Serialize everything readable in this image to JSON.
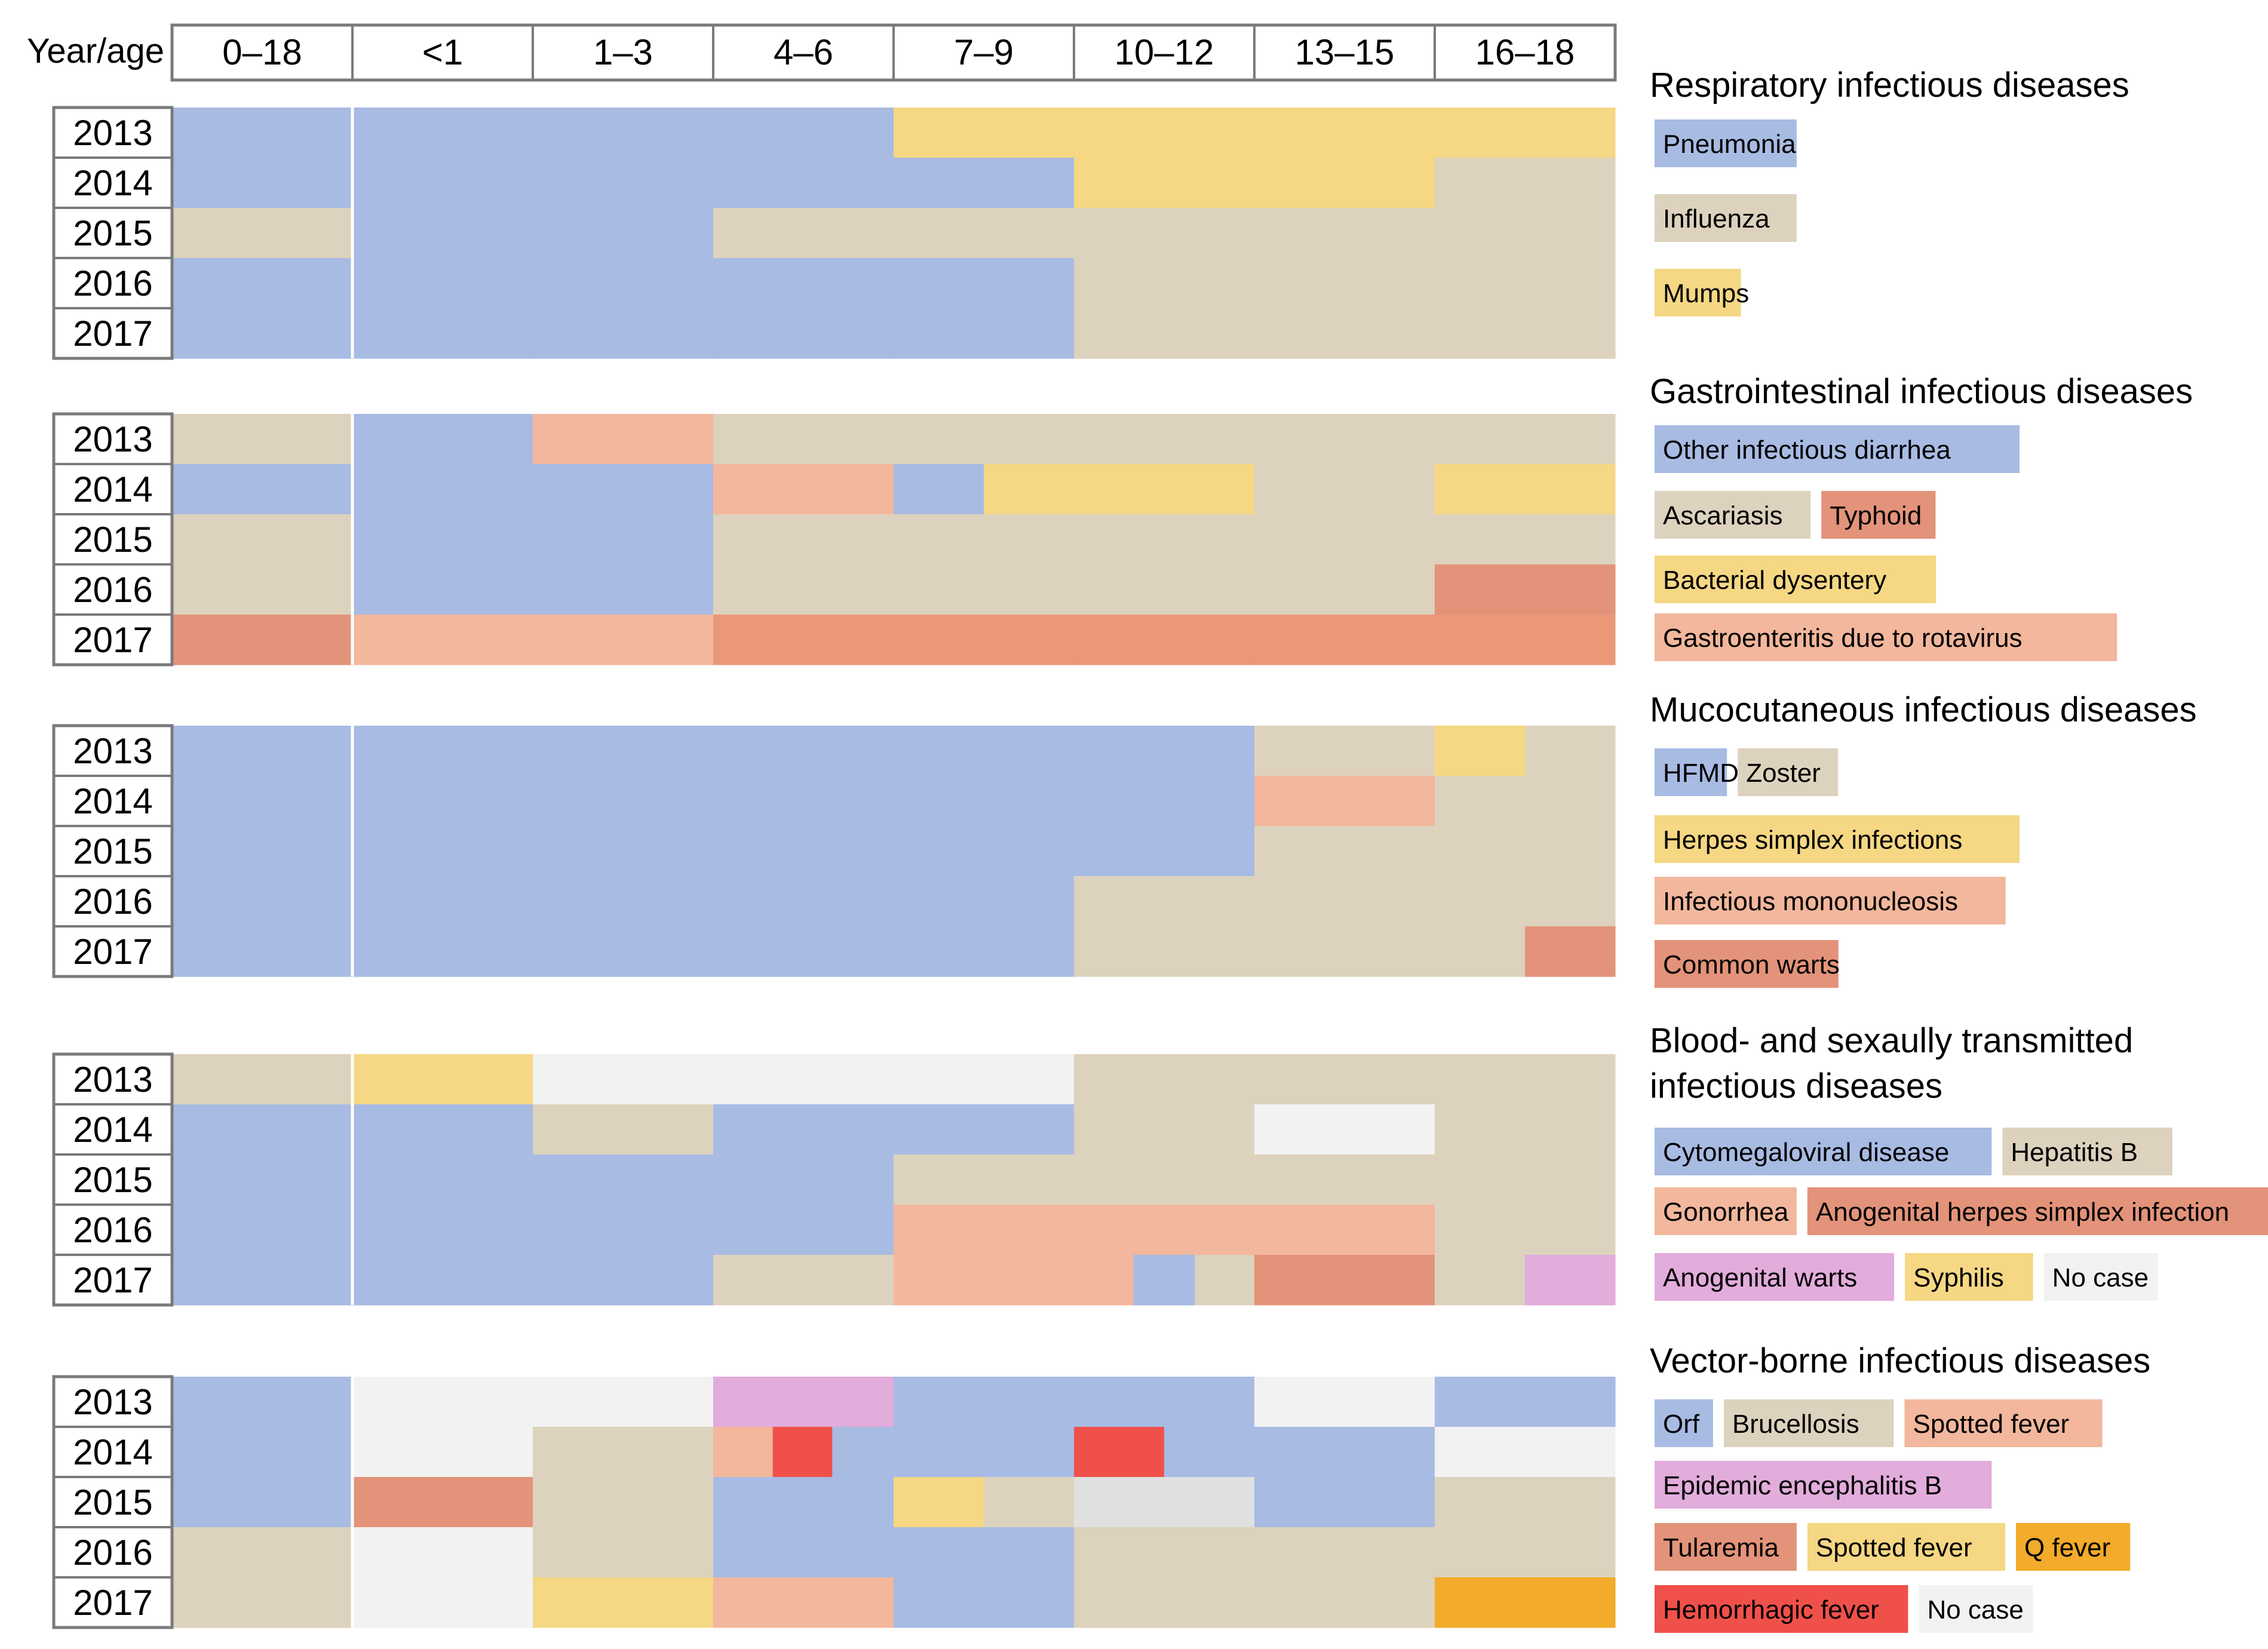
{
  "colors": {
    "blue": "#a8bbe3",
    "beige": "#ddd2bd",
    "yellow": "#f5d784",
    "peach": "#f2b79c",
    "terracotta": "#e3937a",
    "salmon": "#ea9878",
    "pink": "#e2acdb",
    "red": "#f0504a",
    "orange": "#f2ab2a",
    "nocase": "#f2f2f2",
    "gray": "#e0e0e0"
  },
  "chart_data": {
    "type": "heatmap",
    "header_label": "Year/age",
    "age_groups": [
      "0–18",
      "<1",
      "1–3",
      "4–6",
      "7–9",
      "10–12",
      "13–15",
      "16–18"
    ],
    "years": [
      "2013",
      "2014",
      "2015",
      "2016",
      "2017"
    ],
    "panels": [
      {
        "title": "Respiratory infectious diseases",
        "legend": [
          [
            "Pneumonia"
          ],
          [
            "Influenza"
          ],
          [
            "Mumps"
          ]
        ],
        "legend_colors": [
          [
            "blue"
          ],
          [
            "beige"
          ],
          [
            "yellow"
          ]
        ],
        "rows": [
          [
            [
              "blue",
              1
            ],
            [
              "blue",
              1
            ],
            [
              "blue",
              1
            ],
            [
              "blue",
              1
            ],
            [
              "yellow",
              1
            ],
            [
              "yellow",
              1
            ],
            [
              "yellow",
              1
            ],
            [
              "yellow",
              1
            ]
          ],
          [
            [
              "blue",
              1
            ],
            [
              "blue",
              1
            ],
            [
              "blue",
              1
            ],
            [
              "blue",
              1
            ],
            [
              "blue",
              1
            ],
            [
              "yellow",
              1
            ],
            [
              "yellow",
              1
            ],
            [
              "beige",
              1
            ]
          ],
          [
            [
              "beige",
              1
            ],
            [
              "blue",
              1
            ],
            [
              "blue",
              1
            ],
            [
              "beige",
              1
            ],
            [
              "beige",
              1
            ],
            [
              "beige",
              1
            ],
            [
              "beige",
              1
            ],
            [
              "beige",
              1
            ]
          ],
          [
            [
              "blue",
              1
            ],
            [
              "blue",
              1
            ],
            [
              "blue",
              1
            ],
            [
              "blue",
              1
            ],
            [
              "blue",
              1
            ],
            [
              "beige",
              1
            ],
            [
              "beige",
              1
            ],
            [
              "beige",
              1
            ]
          ],
          [
            [
              "blue",
              1
            ],
            [
              "blue",
              1
            ],
            [
              "blue",
              1
            ],
            [
              "blue",
              1
            ],
            [
              "blue",
              1
            ],
            [
              "beige",
              1
            ],
            [
              "beige",
              1
            ],
            [
              "beige",
              1
            ]
          ]
        ]
      },
      {
        "title": "Gastrointestinal infectious diseases",
        "legend": [
          [
            "Other infectious diarrhea"
          ],
          [
            "Ascariasis",
            "Typhoid"
          ],
          [
            "Bacterial dysentery"
          ],
          [
            "Gastroenteritis due to rotavirus"
          ]
        ],
        "legend_colors": [
          [
            "blue"
          ],
          [
            "beige",
            "terracotta"
          ],
          [
            "yellow"
          ],
          [
            "peach"
          ]
        ],
        "rows": [
          [
            [
              "beige",
              1
            ],
            [
              "blue",
              1
            ],
            [
              "peach",
              1
            ],
            [
              "beige",
              1
            ],
            [
              "beige",
              1
            ],
            [
              "beige",
              1
            ],
            [
              "beige",
              1
            ],
            [
              "beige",
              1
            ]
          ],
          [
            [
              "blue",
              1
            ],
            [
              "blue",
              1
            ],
            [
              "blue",
              1
            ],
            [
              "peach",
              1
            ],
            [
              "blue",
              0.5
            ],
            [
              "yellow",
              0.5
            ],
            [
              "yellow",
              1
            ],
            [
              "beige",
              1
            ],
            [
              "yellow",
              1
            ]
          ],
          [
            [
              "beige",
              1
            ],
            [
              "blue",
              1
            ],
            [
              "blue",
              1
            ],
            [
              "beige",
              1
            ],
            [
              "beige",
              1
            ],
            [
              "beige",
              1
            ],
            [
              "beige",
              1
            ],
            [
              "beige",
              1
            ]
          ],
          [
            [
              "beige",
              1
            ],
            [
              "blue",
              1
            ],
            [
              "blue",
              1
            ],
            [
              "beige",
              1
            ],
            [
              "beige",
              1
            ],
            [
              "beige",
              1
            ],
            [
              "beige",
              1
            ],
            [
              "terracotta",
              1
            ]
          ],
          [
            [
              "terracotta",
              1
            ],
            [
              "peach",
              1
            ],
            [
              "peach",
              1
            ],
            [
              "salmon",
              1
            ],
            [
              "salmon",
              1
            ],
            [
              "salmon",
              1
            ],
            [
              "salmon",
              1
            ],
            [
              "salmon",
              1
            ]
          ]
        ]
      },
      {
        "title": "Mucocutaneous infectious diseases",
        "legend": [
          [
            "HFMD",
            "Zoster"
          ],
          [
            "Herpes simplex infections"
          ],
          [
            "Infectious mononucleosis"
          ],
          [
            "Common warts"
          ]
        ],
        "legend_colors": [
          [
            "blue",
            "beige"
          ],
          [
            "yellow"
          ],
          [
            "peach"
          ],
          [
            "terracotta"
          ]
        ],
        "rows": [
          [
            [
              "blue",
              1
            ],
            [
              "blue",
              1
            ],
            [
              "blue",
              1
            ],
            [
              "blue",
              1
            ],
            [
              "blue",
              1
            ],
            [
              "blue",
              1
            ],
            [
              "beige",
              1
            ],
            [
              "yellow",
              0.5
            ],
            [
              "beige",
              0.5
            ]
          ],
          [
            [
              "blue",
              1
            ],
            [
              "blue",
              1
            ],
            [
              "blue",
              1
            ],
            [
              "blue",
              1
            ],
            [
              "blue",
              1
            ],
            [
              "blue",
              1
            ],
            [
              "peach",
              1
            ],
            [
              "beige",
              1
            ]
          ],
          [
            [
              "blue",
              1
            ],
            [
              "blue",
              1
            ],
            [
              "blue",
              1
            ],
            [
              "blue",
              1
            ],
            [
              "blue",
              1
            ],
            [
              "blue",
              1
            ],
            [
              "beige",
              1
            ],
            [
              "beige",
              1
            ]
          ],
          [
            [
              "blue",
              1
            ],
            [
              "blue",
              1
            ],
            [
              "blue",
              1
            ],
            [
              "blue",
              1
            ],
            [
              "blue",
              1
            ],
            [
              "beige",
              1
            ],
            [
              "beige",
              1
            ],
            [
              "beige",
              1
            ]
          ],
          [
            [
              "blue",
              1
            ],
            [
              "blue",
              1
            ],
            [
              "blue",
              1
            ],
            [
              "blue",
              1
            ],
            [
              "blue",
              1
            ],
            [
              "beige",
              1
            ],
            [
              "beige",
              1
            ],
            [
              "beige",
              0.5
            ],
            [
              "terracotta",
              0.5
            ]
          ]
        ]
      },
      {
        "title": "Blood- and sexaully transmitted infectious diseases",
        "title_lines": [
          "Blood- and sexaully transmitted",
          "infectious diseases"
        ],
        "legend": [
          [
            "Cytomegaloviral disease",
            "Hepatitis B"
          ],
          [
            "Gonorrhea",
            "Anogenital herpes simplex infection"
          ],
          [
            "Anogenital warts",
            "Syphilis",
            "No case"
          ]
        ],
        "legend_colors": [
          [
            "blue",
            "beige"
          ],
          [
            "peach",
            "terracotta"
          ],
          [
            "pink",
            "yellow",
            "nocase"
          ]
        ],
        "rows": [
          [
            [
              "beige",
              1
            ],
            [
              "yellow",
              1
            ],
            [
              "nocase",
              1
            ],
            [
              "nocase",
              1
            ],
            [
              "nocase",
              1
            ],
            [
              "beige",
              1
            ],
            [
              "beige",
              1
            ],
            [
              "beige",
              1
            ]
          ],
          [
            [
              "blue",
              1
            ],
            [
              "blue",
              1
            ],
            [
              "beige",
              1
            ],
            [
              "blue",
              1
            ],
            [
              "blue",
              1
            ],
            [
              "beige",
              1
            ],
            [
              "nocase",
              1
            ],
            [
              "beige",
              1
            ]
          ],
          [
            [
              "blue",
              1
            ],
            [
              "blue",
              1
            ],
            [
              "blue",
              1
            ],
            [
              "blue",
              1
            ],
            [
              "beige",
              1
            ],
            [
              "beige",
              1
            ],
            [
              "beige",
              1
            ],
            [
              "beige",
              1
            ]
          ],
          [
            [
              "blue",
              1
            ],
            [
              "blue",
              1
            ],
            [
              "blue",
              1
            ],
            [
              "blue",
              1
            ],
            [
              "peach",
              1
            ],
            [
              "peach",
              1
            ],
            [
              "peach",
              1
            ],
            [
              "beige",
              1
            ]
          ],
          [
            [
              "blue",
              1
            ],
            [
              "blue",
              1
            ],
            [
              "blue",
              1
            ],
            [
              "beige",
              1
            ],
            [
              "peach",
              1
            ],
            [
              "peach",
              0.33
            ],
            [
              "blue",
              0.34
            ],
            [
              "beige",
              0.33
            ],
            [
              "terracotta",
              1
            ],
            [
              "beige",
              0.5
            ],
            [
              "pink",
              0.5
            ]
          ]
        ]
      },
      {
        "title": "Vector-borne infectious diseases",
        "legend": [
          [
            "Orf",
            "Brucellosis",
            "Spotted fever"
          ],
          [
            "Epidemic encephalitis B"
          ],
          [
            "Tularemia",
            "Spotted fever",
            "Q fever"
          ],
          [
            "Hemorrhagic fever",
            "No case"
          ]
        ],
        "legend_colors": [
          [
            "blue",
            "beige",
            "peach"
          ],
          [
            "pink"
          ],
          [
            "terracotta",
            "yellow",
            "orange"
          ],
          [
            "red",
            "nocase"
          ]
        ],
        "rows": [
          [
            [
              "blue",
              1
            ],
            [
              "nocase",
              1
            ],
            [
              "nocase",
              1
            ],
            [
              "pink",
              1
            ],
            [
              "blue",
              1
            ],
            [
              "blue",
              1
            ],
            [
              "nocase",
              1
            ],
            [
              "blue",
              1
            ]
          ],
          [
            [
              "blue",
              1
            ],
            [
              "nocase",
              1
            ],
            [
              "beige",
              1
            ],
            [
              "peach",
              0.33
            ],
            [
              "red",
              0.33
            ],
            [
              "blue",
              0.34
            ],
            [
              "blue",
              1
            ],
            [
              "red",
              0.5
            ],
            [
              "blue",
              0.5
            ],
            [
              "blue",
              1
            ],
            [
              "nocase",
              1
            ]
          ],
          [
            [
              "blue",
              1
            ],
            [
              "terracotta",
              1
            ],
            [
              "beige",
              1
            ],
            [
              "blue",
              1
            ],
            [
              "yellow",
              0.5
            ],
            [
              "beige",
              0.5
            ],
            [
              "gray",
              1
            ],
            [
              "blue",
              1
            ],
            [
              "beige",
              1
            ]
          ],
          [
            [
              "beige",
              1
            ],
            [
              "nocase",
              1
            ],
            [
              "beige",
              1
            ],
            [
              "blue",
              1
            ],
            [
              "blue",
              1
            ],
            [
              "beige",
              1
            ],
            [
              "beige",
              1
            ],
            [
              "beige",
              1
            ]
          ],
          [
            [
              "beige",
              1
            ],
            [
              "nocase",
              1
            ],
            [
              "yellow",
              1
            ],
            [
              "peach",
              1
            ],
            [
              "blue",
              1
            ],
            [
              "beige",
              1
            ],
            [
              "beige",
              1
            ],
            [
              "orange",
              1
            ]
          ]
        ]
      }
    ]
  }
}
